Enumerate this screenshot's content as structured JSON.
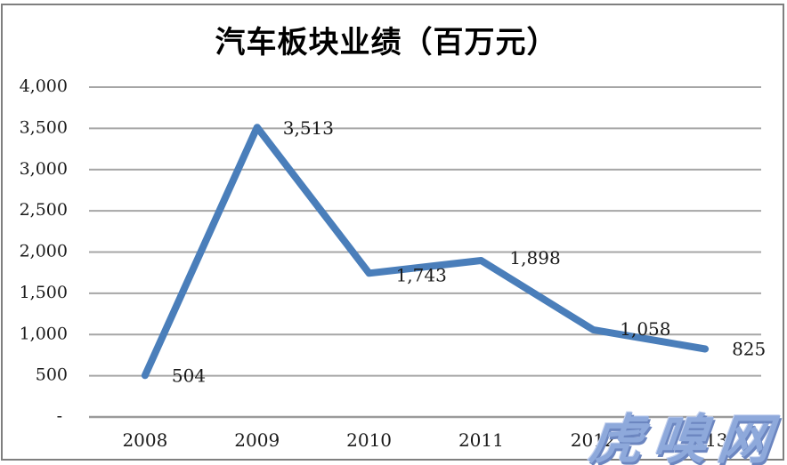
{
  "chart_data": {
    "type": "line",
    "title": "汽车板块业绩（百万元）",
    "categories": [
      "2008",
      "2009",
      "2010",
      "2011",
      "2012",
      "2013"
    ],
    "series": [
      {
        "name": "汽车板块业绩",
        "values": [
          504,
          3513,
          1743,
          1898,
          1058,
          825
        ]
      }
    ],
    "data_labels": [
      "504",
      "3,513",
      "1,743",
      "1,898",
      "1,058",
      "825"
    ],
    "xlabel": "",
    "ylabel": "",
    "ylim": [
      0,
      4000
    ],
    "y_tick_step": 500,
    "y_tick_labels": [
      "4,000",
      "3,500",
      "3,000",
      "2,500",
      "2,000",
      "1,500",
      "1,000",
      "500",
      "-"
    ],
    "grid": true,
    "legend_position": "none",
    "colors": {
      "line": "#4A7EBA",
      "grid": "#A6A6A6",
      "axis": "#9A9A9A",
      "text": "#1A1A1A",
      "frame": "#7F7F7F"
    }
  },
  "watermark": {
    "text": "虎嗅网",
    "color": "#8EA9DB",
    "shadow_color": "#6C86C0"
  }
}
